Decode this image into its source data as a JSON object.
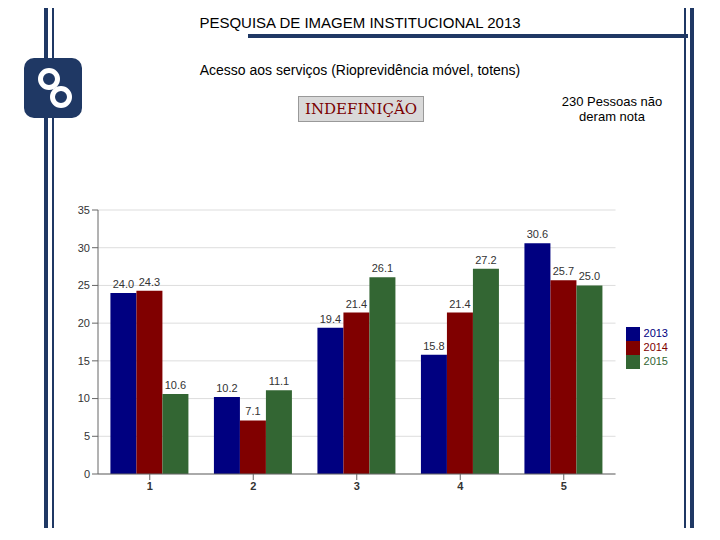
{
  "chart_data": {
    "type": "bar",
    "title": "PESQUISA DE IMAGEM INSTITUCIONAL 2013",
    "subtitle": "Acesso aos serviços (Rioprevidência móvel, totens)",
    "annotations": [
      "INDEFINIÇÃO",
      "230 Pessoas não deram nota"
    ],
    "categories": [
      "1",
      "2",
      "3",
      "4",
      "5"
    ],
    "series": [
      {
        "name": "2013",
        "color": "#000080",
        "values": [
          24.0,
          10.2,
          19.4,
          15.8,
          30.6
        ],
        "value_labels": [
          "24.0",
          "10.2",
          "19.4",
          "15.8",
          "30.6"
        ]
      },
      {
        "name": "2014",
        "color": "#800000",
        "values": [
          24.3,
          7.1,
          21.4,
          21.4,
          25.7
        ],
        "value_labels": [
          "24.3",
          "7.1",
          "21.4",
          "21.4",
          "25.7"
        ]
      },
      {
        "name": "2015",
        "color": "#336633",
        "values": [
          10.6,
          11.1,
          26.1,
          27.2,
          25.0
        ],
        "value_labels": [
          "10.6",
          "11.1",
          "26.1",
          "27.2",
          "25.0"
        ]
      }
    ],
    "ylim": [
      0,
      35
    ],
    "yticks": [
      0,
      5,
      10,
      15,
      20,
      25,
      30,
      35
    ],
    "grid": true,
    "legend": "right",
    "data_labels": true
  }
}
